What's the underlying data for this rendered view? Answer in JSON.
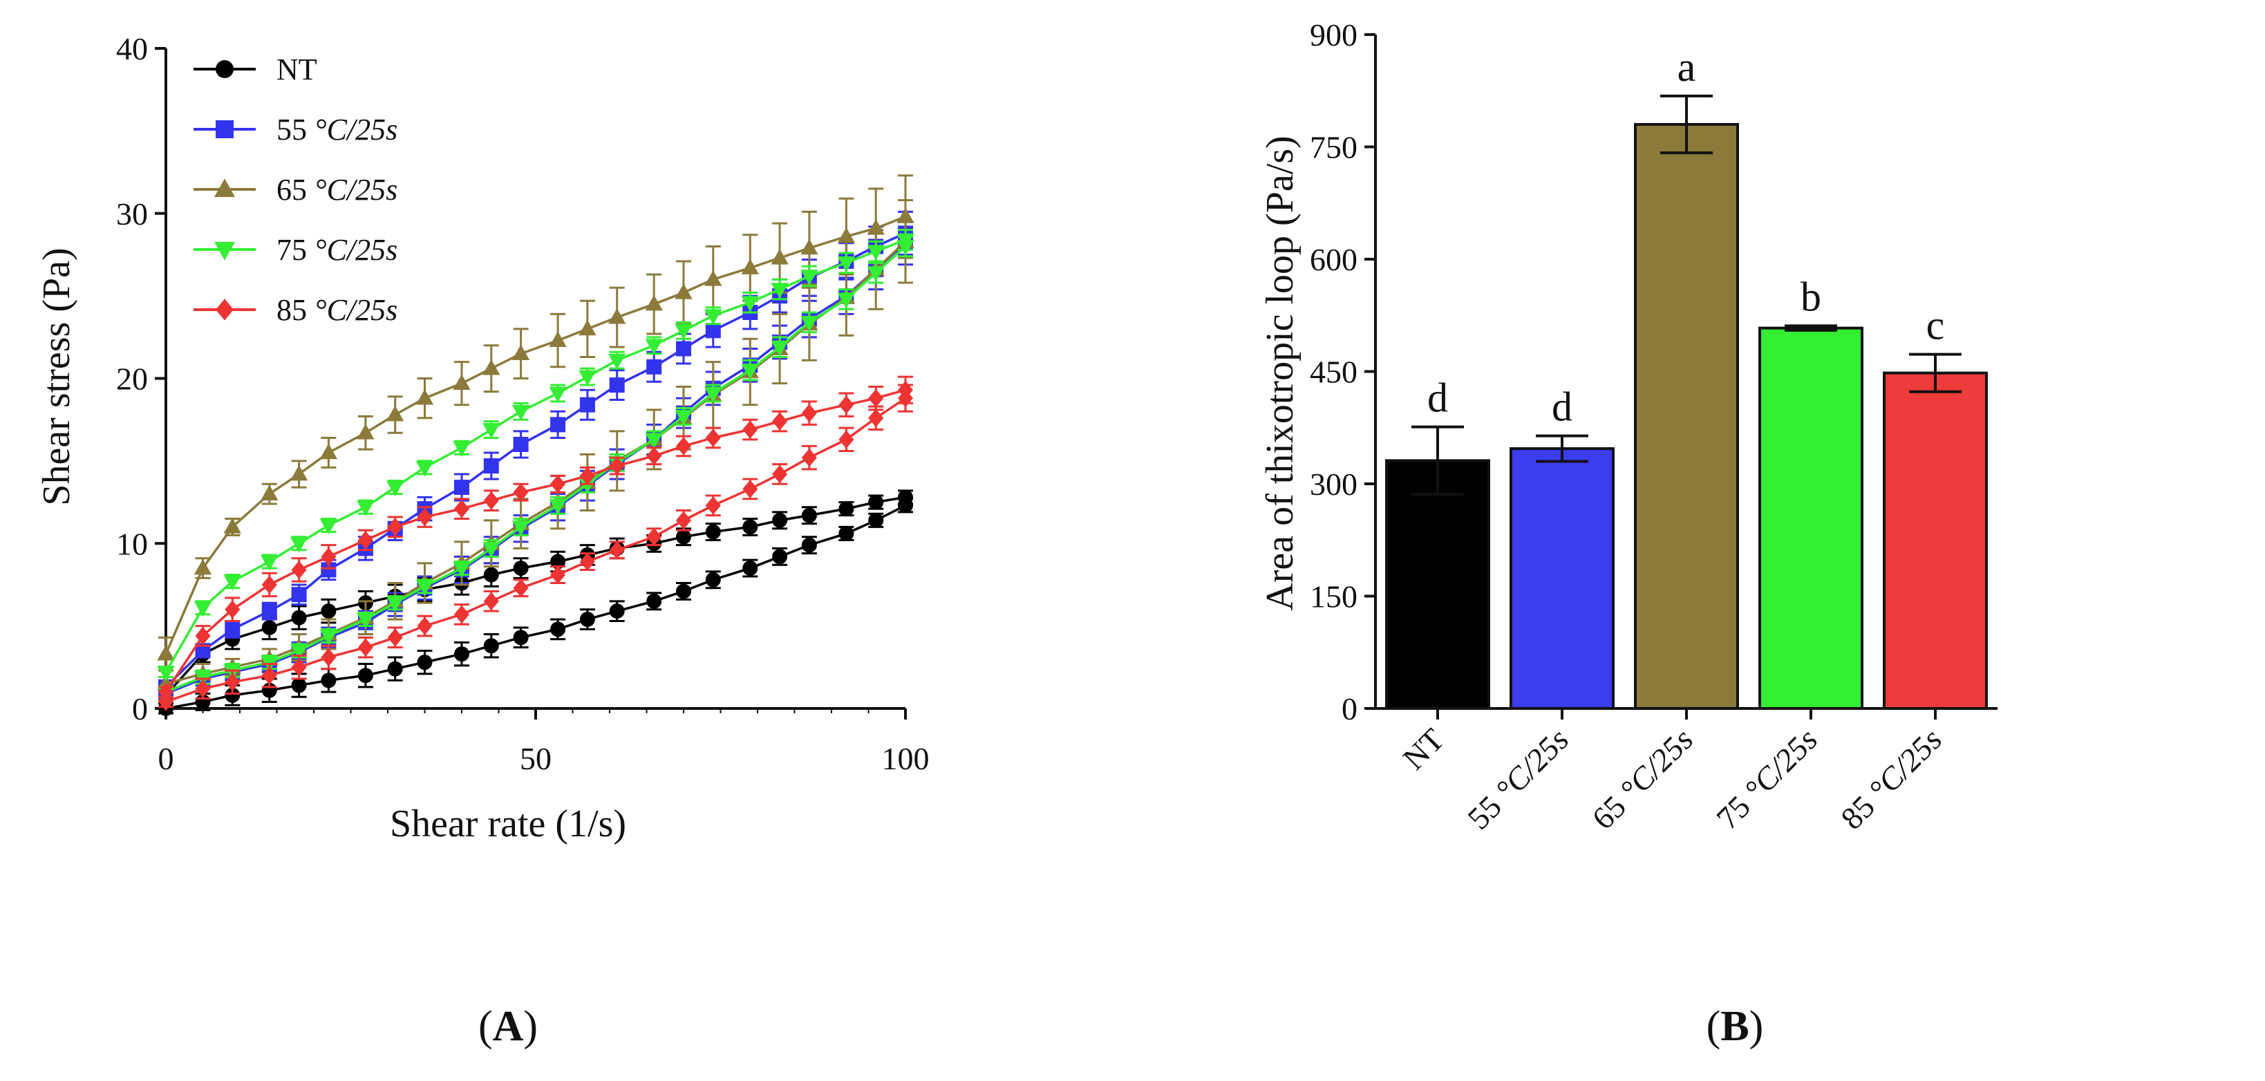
{
  "panel_labels": {
    "a": "(A)",
    "b": "(B)",
    "a_letter": "A",
    "b_letter": "B"
  },
  "chart_data": [
    {
      "type": "line",
      "panel": "A",
      "xlabel": "Shear rate (1/s)",
      "ylabel": "Shear stress (Pa)",
      "xlim": [
        0,
        100
      ],
      "ylim": [
        0,
        40
      ],
      "xticks": [
        "0",
        "50",
        "100"
      ],
      "yticks": [
        "0",
        "10",
        "20",
        "30",
        "40"
      ],
      "legend_position": "top-left",
      "series": [
        {
          "name": "NT",
          "italic": false,
          "color": "#000000",
          "marker": "circle",
          "x": [
            0,
            5,
            9,
            14,
            18,
            22,
            27,
            31,
            35,
            40,
            44,
            48,
            53,
            57,
            61,
            66,
            70,
            74,
            79,
            83,
            87,
            92,
            96,
            100
          ],
          "up": [
            0.8,
            3.3,
            4.2,
            4.9,
            5.5,
            5.9,
            6.4,
            6.8,
            7.2,
            7.6,
            8.1,
            8.5,
            8.9,
            9.3,
            9.7,
            10.0,
            10.4,
            10.7,
            11.0,
            11.4,
            11.7,
            12.1,
            12.5,
            12.8
          ],
          "down": [
            0.0,
            0.4,
            0.8,
            1.1,
            1.4,
            1.7,
            2.0,
            2.4,
            2.8,
            3.3,
            3.8,
            4.3,
            4.8,
            5.4,
            5.9,
            6.5,
            7.1,
            7.8,
            8.5,
            9.2,
            9.9,
            10.6,
            11.4,
            12.3
          ],
          "err": [
            0.3,
            0.5,
            0.6,
            0.7,
            0.7,
            0.7,
            0.7,
            0.7,
            0.7,
            0.7,
            0.7,
            0.6,
            0.6,
            0.6,
            0.6,
            0.5,
            0.5,
            0.5,
            0.5,
            0.5,
            0.5,
            0.4,
            0.4,
            0.4
          ]
        },
        {
          "name": "55 °C/25s",
          "italic": true,
          "color": "#3333ee",
          "marker": "square",
          "x": [
            0,
            5,
            9,
            14,
            18,
            22,
            27,
            31,
            35,
            40,
            44,
            48,
            53,
            57,
            61,
            66,
            70,
            74,
            79,
            83,
            87,
            92,
            96,
            100
          ],
          "up": [
            1.3,
            3.5,
            4.8,
            5.9,
            6.9,
            8.4,
            9.7,
            10.9,
            12.1,
            13.4,
            14.7,
            16.0,
            17.2,
            18.4,
            19.6,
            20.7,
            21.8,
            22.9,
            24.0,
            25.0,
            26.1,
            27.1,
            28.0,
            28.8
          ],
          "down": [
            0.9,
            1.8,
            2.2,
            2.7,
            3.4,
            4.3,
            5.2,
            6.3,
            7.3,
            8.4,
            9.6,
            10.9,
            12.2,
            13.5,
            14.8,
            16.3,
            17.9,
            19.4,
            20.8,
            22.2,
            23.6,
            25.0,
            26.6,
            28.2
          ],
          "err": [
            0.3,
            0.4,
            0.5,
            0.5,
            0.6,
            0.6,
            0.7,
            0.7,
            0.7,
            0.8,
            0.8,
            0.8,
            0.8,
            0.9,
            0.9,
            0.9,
            0.9,
            1.0,
            1.0,
            1.0,
            1.1,
            1.1,
            1.2,
            1.3
          ]
        },
        {
          "name": "65 °C/25s",
          "italic": true,
          "color": "#8b7a3a",
          "marker": "triangle-up",
          "x": [
            0,
            5,
            9,
            14,
            18,
            22,
            27,
            31,
            35,
            40,
            44,
            48,
            53,
            57,
            61,
            66,
            70,
            74,
            79,
            83,
            87,
            92,
            96,
            100
          ],
          "up": [
            3.3,
            8.5,
            11.0,
            13.0,
            14.2,
            15.5,
            16.7,
            17.8,
            18.8,
            19.7,
            20.6,
            21.5,
            22.3,
            23.0,
            23.7,
            24.5,
            25.2,
            26.0,
            26.7,
            27.3,
            27.9,
            28.6,
            29.1,
            29.8
          ],
          "down": [
            1.5,
            2.1,
            2.5,
            3.0,
            3.7,
            4.5,
            5.5,
            6.5,
            7.6,
            8.8,
            10.0,
            11.2,
            12.5,
            13.7,
            15.0,
            16.3,
            17.6,
            19.0,
            20.4,
            21.8,
            23.3,
            24.9,
            26.6,
            28.3
          ],
          "err": [
            1.0,
            0.6,
            0.5,
            0.6,
            0.8,
            0.9,
            1.0,
            1.1,
            1.2,
            1.3,
            1.4,
            1.5,
            1.6,
            1.7,
            1.8,
            1.8,
            1.9,
            2.0,
            2.0,
            2.1,
            2.2,
            2.3,
            2.4,
            2.5
          ]
        },
        {
          "name": "75 °C/25s",
          "italic": true,
          "color": "#33ee33",
          "marker": "triangle-down",
          "x": [
            0,
            5,
            9,
            14,
            18,
            22,
            27,
            31,
            35,
            40,
            44,
            48,
            53,
            57,
            61,
            66,
            70,
            74,
            79,
            83,
            87,
            92,
            96,
            100
          ],
          "up": [
            2.2,
            6.1,
            7.7,
            8.9,
            10.0,
            11.1,
            12.2,
            13.4,
            14.6,
            15.8,
            16.9,
            18.0,
            19.1,
            20.1,
            21.1,
            22.0,
            22.9,
            23.8,
            24.6,
            25.4,
            26.2,
            27.0,
            27.7,
            28.4
          ],
          "down": [
            1.0,
            1.9,
            2.3,
            2.8,
            3.5,
            4.4,
            5.4,
            6.4,
            7.4,
            8.5,
            9.7,
            11.0,
            12.3,
            13.6,
            14.9,
            16.3,
            17.7,
            19.1,
            20.5,
            21.9,
            23.4,
            24.8,
            26.4,
            28.0
          ],
          "err": [
            0.3,
            0.4,
            0.4,
            0.4,
            0.4,
            0.4,
            0.4,
            0.4,
            0.4,
            0.4,
            0.5,
            0.5,
            0.5,
            0.5,
            0.5,
            0.5,
            0.5,
            0.5,
            0.6,
            0.6,
            0.6,
            0.6,
            0.6,
            0.6
          ]
        },
        {
          "name": "85 °C/25s",
          "italic": true,
          "color": "#ee3333",
          "marker": "diamond",
          "x": [
            0,
            5,
            9,
            14,
            18,
            22,
            27,
            31,
            35,
            40,
            44,
            48,
            53,
            57,
            61,
            66,
            70,
            74,
            79,
            83,
            87,
            92,
            96,
            100
          ],
          "up": [
            1.0,
            4.4,
            6.0,
            7.5,
            8.4,
            9.2,
            10.2,
            11.0,
            11.6,
            12.1,
            12.6,
            13.1,
            13.6,
            14.1,
            14.7,
            15.3,
            15.9,
            16.4,
            16.9,
            17.4,
            17.9,
            18.4,
            18.8,
            19.3
          ],
          "down": [
            0.4,
            1.2,
            1.6,
            2.0,
            2.5,
            3.1,
            3.7,
            4.3,
            5.0,
            5.7,
            6.5,
            7.3,
            8.1,
            8.9,
            9.6,
            10.4,
            11.4,
            12.3,
            13.3,
            14.2,
            15.2,
            16.3,
            17.6,
            18.8
          ],
          "err": [
            0.3,
            0.6,
            0.7,
            0.7,
            0.7,
            0.7,
            0.6,
            0.6,
            0.6,
            0.6,
            0.6,
            0.5,
            0.5,
            0.5,
            0.5,
            0.5,
            0.6,
            0.6,
            0.6,
            0.6,
            0.7,
            0.7,
            0.7,
            0.8
          ]
        }
      ]
    },
    {
      "type": "bar",
      "panel": "B",
      "ylabel": "Area of thixotropic loop (Pa/s)",
      "ylim": [
        0,
        900
      ],
      "yticks": [
        "0",
        "150",
        "300",
        "450",
        "600",
        "750",
        "900"
      ],
      "categories": [
        "NT",
        "55 °C/25s",
        "65 °C/25s",
        "75 °C/25s",
        "85 °C/25s"
      ],
      "category_italic": [
        false,
        true,
        true,
        true,
        true
      ],
      "values": [
        331,
        347,
        780,
        508,
        448
      ],
      "errors": [
        45,
        17,
        38,
        3,
        25
      ],
      "colors": [
        "#000000",
        "#3d3df0",
        "#8b7a3a",
        "#33ee33",
        "#ee3b3b"
      ],
      "letters": [
        "d",
        "d",
        "a",
        "b",
        "c"
      ]
    }
  ]
}
